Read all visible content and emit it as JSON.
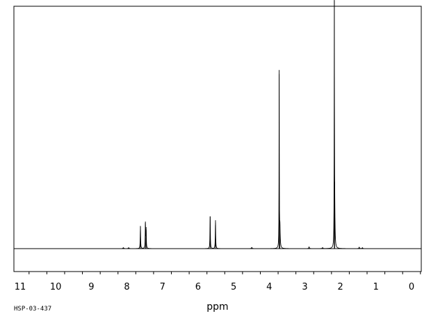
{
  "chart_data": {
    "type": "line",
    "title": "",
    "xlabel": "ppm",
    "ylabel": "",
    "sample_code": "HSP-03-437",
    "x_reversed": true,
    "xlim": [
      11.5,
      -0.25
    ],
    "ylim": [
      0,
      1
    ],
    "major_ticks": [
      "11",
      "10",
      "9",
      "8",
      "7",
      "6",
      "5",
      "4",
      "3",
      "2",
      "1",
      "0"
    ],
    "minor_tick_step": 0.5,
    "grid": false,
    "legend": "none",
    "baseline": 0,
    "peaks": [
      {
        "ppm": 8.1,
        "intensity": 0.004,
        "width": 0.012
      },
      {
        "ppm": 7.95,
        "intensity": 0.004,
        "width": 0.012
      },
      {
        "ppm": 7.62,
        "intensity": 0.093,
        "width": 0.006
      },
      {
        "ppm": 7.48,
        "intensity": 0.105,
        "width": 0.006
      },
      {
        "ppm": 7.46,
        "intensity": 0.08,
        "width": 0.006
      },
      {
        "ppm": 5.66,
        "intensity": 0.133,
        "width": 0.006
      },
      {
        "ppm": 5.51,
        "intensity": 0.117,
        "width": 0.006
      },
      {
        "ppm": 4.49,
        "intensity": 0.005,
        "width": 0.012
      },
      {
        "ppm": 3.72,
        "intensity": 0.72,
        "width": 0.004
      },
      {
        "ppm": 3.7,
        "intensity": 0.085,
        "width": 0.01
      },
      {
        "ppm": 2.88,
        "intensity": 0.007,
        "width": 0.01
      },
      {
        "ppm": 2.5,
        "intensity": 0.004,
        "width": 0.012
      },
      {
        "ppm": 2.17,
        "intensity": 0.987,
        "width": 0.004
      },
      {
        "ppm": 2.16,
        "intensity": 0.14,
        "width": 0.01
      },
      {
        "ppm": 1.47,
        "intensity": 0.006,
        "width": 0.01
      },
      {
        "ppm": 1.38,
        "intensity": 0.004,
        "width": 0.01
      }
    ],
    "colors": {
      "line": "#000000",
      "frame": "#000000",
      "background": "#ffffff"
    }
  }
}
